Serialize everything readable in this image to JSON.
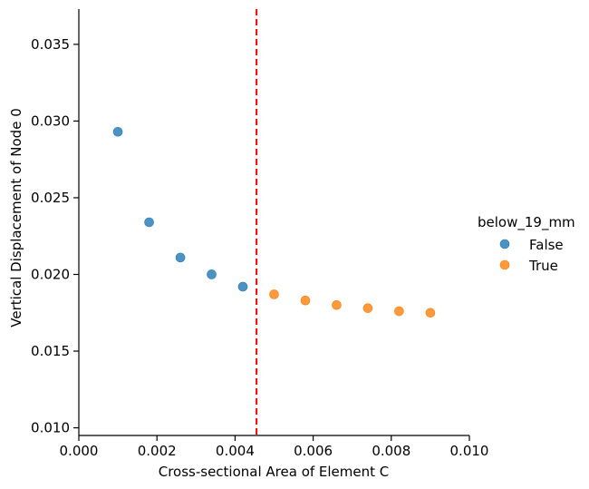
{
  "chart_data": {
    "type": "scatter",
    "title": "",
    "xlabel": "Cross-sectional Area of Element C",
    "ylabel": "Vertical Displacement of Node 0",
    "xlim": [
      0.0,
      0.01
    ],
    "ylim": [
      0.0095,
      0.0373
    ],
    "x_ticks": [
      "0.000",
      "0.002",
      "0.004",
      "0.006",
      "0.008",
      "0.010"
    ],
    "x_tick_values": [
      0.0,
      0.002,
      0.004,
      0.006,
      0.008,
      0.01
    ],
    "y_ticks": [
      "0.010",
      "0.015",
      "0.020",
      "0.025",
      "0.030",
      "0.035"
    ],
    "y_tick_values": [
      0.01,
      0.015,
      0.02,
      0.025,
      0.03,
      0.035
    ],
    "grid": false,
    "legend": {
      "title": "below_19_mm",
      "placement": "right",
      "entries": [
        {
          "label": "False",
          "color": "#1f77b4"
        },
        {
          "label": "True",
          "color": "#ff7f0e"
        }
      ]
    },
    "series": [
      {
        "name": "False",
        "color": "#1f77b4",
        "points": [
          {
            "x": 0.001,
            "y": 0.0293
          },
          {
            "x": 0.0018,
            "y": 0.0234
          },
          {
            "x": 0.0026,
            "y": 0.0211
          },
          {
            "x": 0.0034,
            "y": 0.02
          },
          {
            "x": 0.0042,
            "y": 0.0192
          }
        ]
      },
      {
        "name": "True",
        "color": "#ff7f0e",
        "points": [
          {
            "x": 0.005,
            "y": 0.0187
          },
          {
            "x": 0.0058,
            "y": 0.0183
          },
          {
            "x": 0.0066,
            "y": 0.018
          },
          {
            "x": 0.0074,
            "y": 0.0178
          },
          {
            "x": 0.0082,
            "y": 0.0176
          },
          {
            "x": 0.009,
            "y": 0.0175
          }
        ]
      }
    ],
    "reference_lines": [
      {
        "orientation": "vertical",
        "x": 0.00455,
        "color": "#ff0000",
        "style": "dashed"
      }
    ]
  }
}
